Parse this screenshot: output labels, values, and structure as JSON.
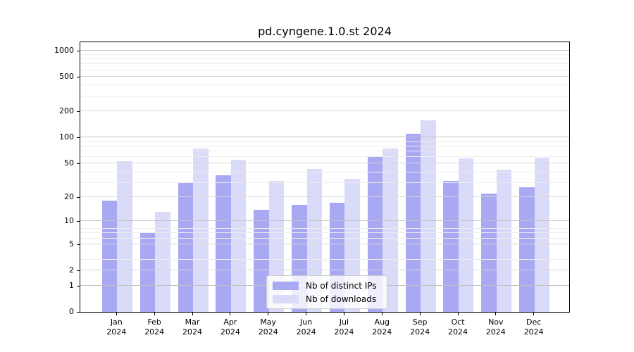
{
  "title": "pd.cyngene.1.0.st 2024",
  "colors": {
    "distinct_ips": "#a8a8f3",
    "downloads": "#dadaf9",
    "grid_major": "#c2c2c2",
    "grid_mid": "#d8d8d8",
    "grid_minor": "#ededed",
    "axis": "#000000"
  },
  "legend": {
    "items": [
      {
        "label": "Nb of distinct IPs",
        "series_key": "distinct_ips"
      },
      {
        "label": "Nb of downloads",
        "series_key": "downloads"
      }
    ]
  },
  "chart_data": {
    "type": "bar",
    "title": "pd.cyngene.1.0.st 2024",
    "categories": [
      "Jan",
      "Feb",
      "Mar",
      "Apr",
      "May",
      "Jun",
      "Jul",
      "Aug",
      "Sep",
      "Oct",
      "Nov",
      "Dec"
    ],
    "x_year_label": "2024",
    "series": [
      {
        "name": "Nb of distinct IPs",
        "key": "distinct_ips",
        "values": [
          18,
          7,
          30,
          36,
          14,
          16,
          17,
          59,
          110,
          31,
          22,
          26
        ]
      },
      {
        "name": "Nb of downloads",
        "key": "downloads",
        "values": [
          53,
          13,
          74,
          55,
          31,
          43,
          33,
          74,
          157,
          57,
          42,
          58
        ]
      }
    ],
    "yscale": "log1p",
    "yticks": [
      0,
      1,
      2,
      5,
      10,
      20,
      50,
      100,
      200,
      500,
      1000
    ],
    "ylim": [
      0,
      1264
    ],
    "grid": true,
    "legend_position": "lower center"
  }
}
